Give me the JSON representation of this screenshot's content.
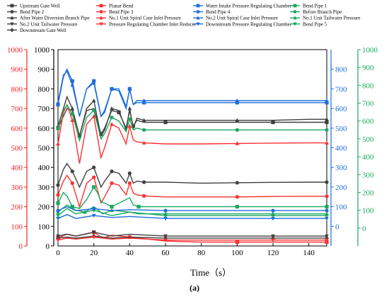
{
  "chart_data": {
    "type": "line",
    "xlabel": "Time（s）",
    "caption": "(a)",
    "xlim": [
      0,
      150
    ],
    "x_ticks": [
      "0",
      "20",
      "40",
      "60",
      "80",
      "100",
      "120",
      "140"
    ],
    "axes": {
      "left_black": {
        "range": [
          0,
          1000
        ],
        "ticks": [
          "0",
          "100",
          "200",
          "300",
          "400",
          "500",
          "600",
          "700",
          "800",
          "900",
          "1000"
        ],
        "color": "#000000"
      },
      "left_red": {
        "range": [
          0,
          1000
        ],
        "ticks": [
          "0",
          "100",
          "200",
          "300",
          "400",
          "500",
          "600",
          "700",
          "800",
          "900",
          "1000"
        ],
        "color": "#ff2020"
      },
      "right_blue": {
        "range": [
          -100,
          900
        ],
        "ticks": [
          "0",
          "100",
          "200",
          "300",
          "400",
          "500",
          "600",
          "700",
          "800"
        ],
        "color": "#1e6fd9"
      },
      "right_green": {
        "range": [
          -100,
          1000
        ],
        "ticks": [
          "0",
          "100",
          "200",
          "300",
          "400",
          "500",
          "600",
          "700",
          "800",
          "900",
          "1000"
        ],
        "color": "#1aa860"
      }
    },
    "legend": [
      {
        "name": "Upstream Gate Well",
        "color": "#404040",
        "marker": "square"
      },
      {
        "name": "Planar Bend",
        "color": "#ff3030",
        "marker": "square"
      },
      {
        "name": "Water Intake Pressure Regulating Chamber",
        "color": "#1e6fd9",
        "marker": "square"
      },
      {
        "name": "Bend Pipe 1",
        "color": "#1aa860",
        "marker": "square"
      },
      {
        "name": "Bend Pipe 2",
        "color": "#404040",
        "marker": "circle"
      },
      {
        "name": "Bend Pipe 3",
        "color": "#ff3030",
        "marker": "circle"
      },
      {
        "name": "Bend Pipe 4",
        "color": "#1e6fd9",
        "marker": "circle"
      },
      {
        "name": "Before Branch Pipe",
        "color": "#1aa860",
        "marker": "circle"
      },
      {
        "name": "After Water Diversion Branch Pipe",
        "color": "#404040",
        "marker": "triangle"
      },
      {
        "name": "No.1 Unit Spiral Case Inlet Pressure",
        "color": "#ff3030",
        "marker": "triangle"
      },
      {
        "name": "No.2 Unit Spiral Case Inlet Pressure",
        "color": "#1e6fd9",
        "marker": "triangle"
      },
      {
        "name": "No.1 Unit Tailwater Pressure",
        "color": "#1aa860",
        "marker": "triangle"
      },
      {
        "name": "No.2 Unit Tailwater Pressure",
        "color": "#404040",
        "marker": "tridown"
      },
      {
        "name": "Pressure Regulating Chamber Inlet Reducer",
        "color": "#ff3030",
        "marker": "tridown"
      },
      {
        "name": "Downstream Pressure Regulating Chamber",
        "color": "#1e6fd9",
        "marker": "tridown"
      },
      {
        "name": "Bend Pipe 5",
        "color": "#1aa860",
        "marker": "tridown"
      },
      {
        "name": "Downstream Gate Well",
        "color": "#404040",
        "marker": "diamond"
      }
    ],
    "series": [
      {
        "name": "After Water Diversion Branch Pipe",
        "axis": "left_black",
        "color": "#404040",
        "marker": "triangle",
        "x": [
          0,
          3,
          5,
          8,
          12,
          16,
          20,
          24,
          26,
          30,
          34,
          38,
          40,
          42,
          44,
          48,
          60,
          80,
          100,
          120,
          140,
          150
        ],
        "y": [
          610,
          700,
          760,
          700,
          560,
          700,
          740,
          560,
          590,
          700,
          690,
          590,
          700,
          600,
          650,
          640,
          640,
          640,
          640,
          640,
          645,
          645
        ]
      },
      {
        "name": "Upstream Gate Well",
        "axis": "left_black",
        "color": "#404040",
        "marker": "square",
        "x": [
          0,
          5,
          8,
          12,
          16,
          20,
          24,
          26,
          30,
          34,
          38,
          40,
          42,
          44,
          48,
          60,
          80,
          100,
          120,
          140,
          150
        ],
        "y": [
          600,
          700,
          690,
          560,
          690,
          700,
          570,
          600,
          690,
          680,
          600,
          690,
          610,
          640,
          630,
          630,
          630,
          630,
          630,
          630,
          630
        ]
      },
      {
        "name": "Bend Pipe 2",
        "axis": "left_black",
        "color": "#404040",
        "marker": "circle",
        "x": [
          0,
          3,
          5,
          8,
          12,
          16,
          20,
          24,
          26,
          30,
          34,
          38,
          40,
          42,
          44,
          48,
          60,
          80,
          100,
          120,
          140,
          150
        ],
        "y": [
          310,
          390,
          420,
          380,
          300,
          380,
          400,
          300,
          330,
          380,
          370,
          320,
          370,
          320,
          330,
          325,
          325,
          320,
          322,
          324,
          325,
          325
        ]
      },
      {
        "name": "Bend Pipe 3",
        "axis": "left_red",
        "color": "#ff3030",
        "marker": "circle",
        "x": [
          0,
          3,
          5,
          8,
          12,
          16,
          20,
          24,
          26,
          30,
          34,
          38,
          40,
          42,
          44,
          48,
          60,
          80,
          100,
          120,
          140,
          150
        ],
        "y": [
          260,
          330,
          360,
          320,
          200,
          320,
          350,
          220,
          250,
          320,
          310,
          260,
          320,
          270,
          260,
          255,
          250,
          250,
          250,
          252,
          253,
          253
        ]
      },
      {
        "name": "No.1 Unit Spiral Case Inlet Pressure",
        "axis": "left_red",
        "color": "#ff3030",
        "marker": "triangle",
        "x": [
          0,
          3,
          5,
          8,
          12,
          16,
          20,
          24,
          26,
          30,
          34,
          38,
          40,
          42,
          44,
          48,
          60,
          80,
          100,
          120,
          140,
          150
        ],
        "y": [
          520,
          680,
          720,
          640,
          420,
          620,
          660,
          450,
          500,
          620,
          600,
          520,
          610,
          540,
          530,
          525,
          520,
          520,
          522,
          524,
          525,
          525
        ]
      },
      {
        "name": "Planar Bend",
        "axis": "left_red",
        "color": "#ff3030",
        "marker": "square",
        "x": [
          0,
          5,
          10,
          20,
          25,
          30,
          40,
          60,
          80,
          100,
          120,
          140,
          150
        ],
        "y": [
          40,
          60,
          50,
          70,
          40,
          55,
          45,
          25,
          20,
          20,
          20,
          20,
          20
        ]
      },
      {
        "name": "Water Intake Pressure Regulating Chamber",
        "axis": "right_blue",
        "color": "#1e6fd9",
        "marker": "square",
        "x": [
          0,
          3,
          5,
          8,
          12,
          16,
          20,
          24,
          26,
          30,
          34,
          38,
          40,
          42,
          44,
          48,
          60,
          80,
          100,
          120,
          140,
          150
        ],
        "y": [
          620,
          760,
          800,
          740,
          560,
          700,
          740,
          560,
          580,
          700,
          690,
          600,
          700,
          620,
          630,
          630,
          630,
          630,
          630,
          630,
          630,
          630
        ]
      },
      {
        "name": "No.2 Unit Spiral Case Inlet Pressure",
        "axis": "right_blue",
        "color": "#1e6fd9",
        "marker": "triangle",
        "x": [
          0,
          3,
          5,
          8,
          12,
          16,
          20,
          24,
          26,
          30,
          34,
          38,
          40,
          42,
          44,
          48,
          60,
          80,
          100,
          120,
          140,
          150
        ],
        "y": [
          630,
          770,
          790,
          720,
          560,
          700,
          730,
          560,
          590,
          700,
          700,
          610,
          700,
          620,
          640,
          640,
          640,
          640,
          640,
          640,
          640,
          640
        ]
      },
      {
        "name": "Downstream Pressure Regulating Chamber",
        "axis": "right_blue",
        "color": "#1e6fd9",
        "marker": "tridown",
        "x": [
          0,
          5,
          10,
          20,
          30,
          40,
          60,
          80,
          100,
          120,
          140,
          150
        ],
        "y": [
          40,
          60,
          40,
          55,
          45,
          50,
          40,
          40,
          40,
          40,
          40,
          40
        ]
      },
      {
        "name": "Before Branch Pipe",
        "axis": "right_green",
        "color": "#1aa860",
        "marker": "circle",
        "x": [
          0,
          3,
          5,
          8,
          12,
          16,
          20,
          24,
          26,
          30,
          34,
          38,
          40,
          42,
          44,
          48,
          60,
          80,
          100,
          120,
          140,
          150
        ],
        "y": [
          560,
          660,
          690,
          640,
          490,
          620,
          660,
          500,
          530,
          620,
          600,
          540,
          610,
          550,
          560,
          550,
          550,
          550,
          550,
          550,
          550,
          550
        ]
      },
      {
        "name": "Bend Pipe 1",
        "axis": "right_green",
        "color": "#1aa860",
        "marker": "square",
        "x": [
          0,
          3,
          5,
          8,
          12,
          16,
          20,
          22,
          24,
          30,
          40,
          42,
          45,
          60,
          80,
          100,
          120,
          140,
          150
        ],
        "y": [
          140,
          200,
          180,
          120,
          110,
          160,
          230,
          200,
          150,
          120,
          170,
          130,
          120,
          120,
          120,
          120,
          120,
          120,
          120
        ]
      },
      {
        "name": "No.1 Unit Tailwater Pressure",
        "axis": "right_green",
        "color": "#1aa860",
        "marker": "triangle",
        "x": [
          0,
          5,
          10,
          15,
          20,
          25,
          30,
          40,
          45,
          60,
          80,
          100,
          120,
          140,
          150
        ],
        "y": [
          90,
          130,
          100,
          90,
          120,
          80,
          100,
          90,
          80,
          80,
          80,
          80,
          80,
          80,
          80
        ]
      },
      {
        "name": "Bend Pipe 5",
        "axis": "right_green",
        "color": "#1aa860",
        "marker": "tridown",
        "x": [
          0,
          5,
          10,
          20,
          30,
          40,
          60,
          80,
          100,
          120,
          140,
          150
        ],
        "y": [
          70,
          110,
          80,
          100,
          70,
          90,
          70,
          70,
          70,
          70,
          70,
          70
        ]
      },
      {
        "name": "No.2 Unit Tailwater Pressure",
        "axis": "left_black",
        "color": "#404040",
        "marker": "tridown",
        "x": [
          0,
          5,
          10,
          20,
          30,
          40,
          60,
          80,
          100,
          120,
          140,
          150
        ],
        "y": [
          50,
          60,
          50,
          70,
          50,
          60,
          50,
          50,
          50,
          50,
          50,
          50
        ]
      },
      {
        "name": "Downstream Gate Well",
        "axis": "left_black",
        "color": "#404040",
        "marker": "diamond",
        "x": [
          0,
          5,
          10,
          20,
          30,
          40,
          60,
          80,
          100,
          120,
          140,
          150
        ],
        "y": [
          40,
          45,
          40,
          50,
          40,
          45,
          40,
          40,
          40,
          40,
          40,
          40
        ]
      },
      {
        "name": "Pressure Regulating Chamber Inlet Reducer",
        "axis": "left_red",
        "color": "#ff3030",
        "marker": "tridown",
        "x": [
          0,
          5,
          10,
          20,
          30,
          40,
          60,
          80,
          100,
          120,
          140,
          150
        ],
        "y": [
          30,
          40,
          35,
          45,
          35,
          40,
          30,
          30,
          30,
          30,
          30,
          30
        ]
      },
      {
        "name": "Bend Pipe 4",
        "axis": "right_blue",
        "color": "#1e6fd9",
        "marker": "circle",
        "x": [
          0,
          5,
          10,
          20,
          30,
          40,
          60,
          80,
          100,
          120,
          140,
          150
        ],
        "y": [
          80,
          100,
          80,
          90,
          80,
          85,
          80,
          80,
          80,
          80,
          80,
          80
        ]
      }
    ]
  }
}
